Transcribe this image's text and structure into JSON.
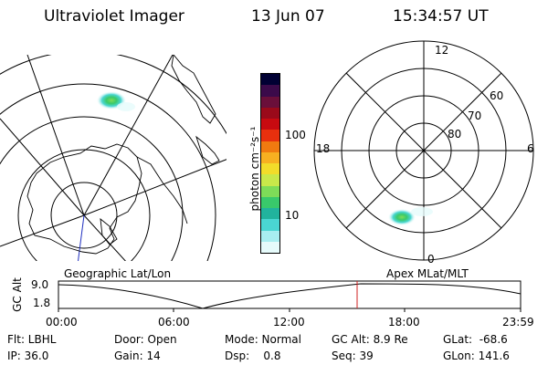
{
  "header": {
    "instrument": "Ultraviolet Imager",
    "date": "13 Jun 07",
    "time": "15:34:57 UT"
  },
  "left_panel": {
    "caption": "Geographic Lat/Lon"
  },
  "right_panel": {
    "caption": "Apex MLat/MLT",
    "mlt_labels": [
      "12",
      "18",
      "6",
      "0"
    ],
    "mlat_labels": [
      "60",
      "70",
      "80"
    ]
  },
  "colorbar": {
    "unit_label": "photon cm⁻²s⁻¹",
    "tick_labels": [
      "100",
      "10"
    ],
    "colors": [
      "#000033",
      "#3b0a4a",
      "#6a0f3a",
      "#9a0a1a",
      "#c80a10",
      "#e8300e",
      "#f07a10",
      "#f7b021",
      "#f2dc2a",
      "#c9e84a",
      "#7edc58",
      "#39c96b",
      "#21b39d",
      "#4ad6d2",
      "#a8eef0",
      "#e6fbfb"
    ]
  },
  "timeline": {
    "y_label": "GC Alt",
    "y_ticks": [
      "9.0",
      "1.8"
    ],
    "x_ticks": [
      "00:00",
      "06:00",
      "12:00",
      "18:00",
      "23:59"
    ],
    "current_marker_color": "#d02020"
  },
  "info": {
    "filter": "Flt: LBHL",
    "ip": "IP: 36.0",
    "door": "Door: Open",
    "gain": "Gain: 14",
    "mode": "Mode: Normal",
    "dsp": "Dsp:    0.8",
    "gc_alt": "GC Alt: 8.9 Re",
    "seq": "Seq: 39",
    "glat": "GLat:  -68.6",
    "glon": "GLon: 141.6"
  }
}
